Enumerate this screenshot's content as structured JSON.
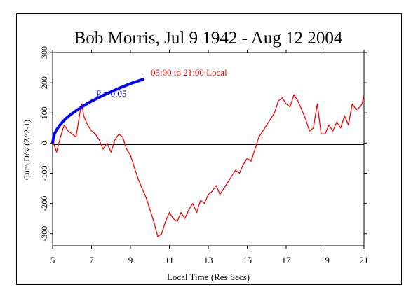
{
  "chart_data": {
    "type": "line",
    "title": "Bob Morris, Jul 9 1942 - Aug 12 2004",
    "xlabel": "Local Time (Res Secs)",
    "ylabel": "Cum Dev (Z^2-1)",
    "xlim": [
      5,
      21
    ],
    "ylim": [
      -340,
      300
    ],
    "x_ticks": [
      5,
      7,
      9,
      11,
      13,
      15,
      17,
      19,
      21
    ],
    "x_tick_labels": [
      "5",
      "7",
      "9",
      "11",
      "13",
      "15",
      "17",
      "19",
      "21"
    ],
    "y_ticks": [
      -300,
      -200,
      -100,
      0,
      100,
      200,
      300
    ],
    "y_tick_labels": [
      "-300",
      "-200",
      "-100",
      "0",
      "100",
      "200",
      "300"
    ],
    "grid": false,
    "annotations": [
      {
        "text": "05:00 to 21:00 Local",
        "color": "#ff0000"
      },
      {
        "text": "P = 0.05",
        "color": "#0000cc"
      }
    ],
    "series": [
      {
        "color": "#ff0000",
        "x": [
          5.0,
          5.2,
          5.4,
          5.6,
          5.8,
          6.0,
          6.2,
          6.4,
          6.5,
          6.6,
          6.8,
          7.0,
          7.2,
          7.4,
          7.6,
          7.8,
          8.0,
          8.2,
          8.4,
          8.6,
          8.8,
          9.0,
          9.2,
          9.4,
          9.6,
          9.8,
          10.0,
          10.2,
          10.4,
          10.6,
          10.8,
          11.0,
          11.2,
          11.4,
          11.6,
          11.8,
          12.0,
          12.2,
          12.4,
          12.6,
          12.8,
          13.0,
          13.2,
          13.4,
          13.6,
          13.8,
          14.0,
          14.2,
          14.4,
          14.6,
          14.8,
          15.0,
          15.2,
          15.4,
          15.6,
          15.8,
          16.0,
          16.2,
          16.4,
          16.6,
          16.8,
          17.0,
          17.2,
          17.4,
          17.6,
          17.8,
          18.0,
          18.2,
          18.4,
          18.6,
          18.8,
          19.0,
          19.2,
          19.4,
          19.6,
          19.8,
          20.0,
          20.2,
          20.4,
          20.6,
          20.8,
          20.9,
          21.0
        ],
        "y": [
          10,
          -30,
          20,
          60,
          40,
          30,
          20,
          100,
          130,
          90,
          60,
          40,
          30,
          10,
          -20,
          0,
          -30,
          10,
          30,
          20,
          -20,
          -40,
          -80,
          -120,
          -150,
          -180,
          -220,
          -260,
          -310,
          -300,
          -260,
          -230,
          -250,
          -260,
          -230,
          -250,
          -220,
          -200,
          -230,
          -190,
          -200,
          -170,
          -160,
          -140,
          -170,
          -150,
          -130,
          -110,
          -90,
          -100,
          -70,
          -50,
          -60,
          -20,
          20,
          40,
          60,
          80,
          100,
          140,
          150,
          130,
          120,
          160,
          140,
          110,
          80,
          40,
          50,
          130,
          30,
          30,
          60,
          40,
          70,
          50,
          90,
          60,
          130,
          110,
          120,
          130,
          160
        ]
      },
      {
        "name": "P = 0.05",
        "color": "#0000ff",
        "x": [
          5.0,
          5.05,
          5.1,
          5.2,
          5.4,
          5.6,
          5.8,
          6.0,
          6.5,
          7.0,
          7.5,
          8.0,
          8.5,
          9.0,
          9.5,
          9.7
        ],
        "y": [
          0,
          22,
          31,
          44,
          62,
          76,
          88,
          98,
          120,
          139,
          155,
          170,
          184,
          197,
          208,
          213
        ]
      }
    ]
  }
}
